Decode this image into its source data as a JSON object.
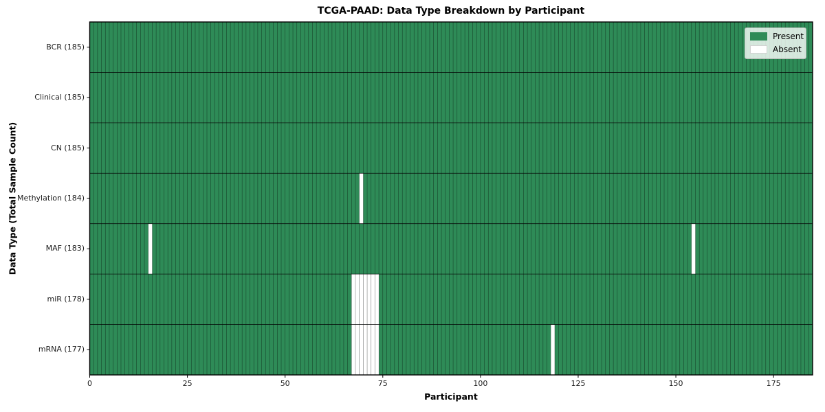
{
  "chart_data": {
    "type": "heatmap",
    "title": "TCGA-PAAD: Data Type Breakdown by Participant",
    "xlabel": "Participant",
    "ylabel": "Data Type (Total Sample Count)",
    "n_participants": 185,
    "xlim": [
      0,
      185
    ],
    "x_ticks": [
      0,
      25,
      50,
      75,
      100,
      125,
      150,
      175
    ],
    "grid": "cell-edges",
    "rows": [
      {
        "label": "BCR (185)",
        "total": 185,
        "absent_participants": []
      },
      {
        "label": "Clinical (185)",
        "total": 185,
        "absent_participants": []
      },
      {
        "label": "CN (185)",
        "total": 185,
        "absent_participants": []
      },
      {
        "label": "Methylation (184)",
        "total": 184,
        "absent_participants": [
          69
        ]
      },
      {
        "label": "MAF (183)",
        "total": 183,
        "absent_participants": [
          15,
          154
        ]
      },
      {
        "label": "miR (178)",
        "total": 178,
        "absent_participants": [
          67,
          68,
          69,
          70,
          71,
          72,
          73
        ]
      },
      {
        "label": "mRNA (177)",
        "total": 177,
        "absent_participants": [
          67,
          68,
          69,
          70,
          71,
          72,
          73,
          118
        ]
      }
    ],
    "legend": {
      "position": "upper right",
      "items": [
        {
          "label": "Present",
          "color": "#2e8b57"
        },
        {
          "label": "Absent",
          "color": "#ffffff"
        }
      ]
    },
    "colors": {
      "present": "#2e8b57",
      "absent": "#ffffff",
      "cell_edge": "#000000",
      "row_separator": "#000000",
      "plot_border": "#000000",
      "background": "#ffffff"
    }
  }
}
